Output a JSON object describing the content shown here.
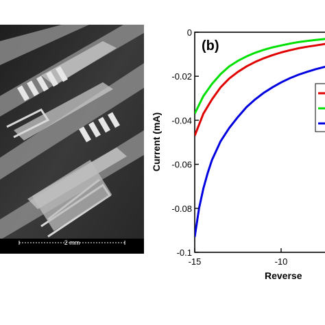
{
  "sem_image": {
    "scale_bar_label": "2 mm",
    "description_colors": {
      "background": "#2b2b2b",
      "device": "#bdbdbd"
    }
  },
  "chart_data": {
    "type": "line",
    "panel_label": "(b)",
    "xlabel": "Reverse",
    "ylabel": "Current (mA)",
    "xlim": [
      -15,
      -6
    ],
    "ylim": [
      -0.1,
      0
    ],
    "xticks": [
      -15,
      -10
    ],
    "yticks": [
      0,
      -0.02,
      -0.04,
      -0.06,
      -0.08,
      -0.1
    ],
    "ytick_labels": [
      "0",
      "-0.02",
      "-0.04",
      "-0.06",
      "-0.08",
      "-0.1"
    ],
    "xtick_labels": [
      "-15",
      "-10"
    ],
    "grid": false,
    "legend_placement": "right",
    "series": [
      {
        "color": "#00e000",
        "x": [
          -15,
          -14.5,
          -14,
          -13.5,
          -13,
          -12.5,
          -12,
          -11.5,
          -11,
          -10.5,
          -10,
          -9.5,
          -9,
          -8.5,
          -8,
          -7.5,
          -7
        ],
        "y": [
          -0.037,
          -0.029,
          -0.0235,
          -0.019,
          -0.0155,
          -0.013,
          -0.011,
          -0.0093,
          -0.008,
          -0.0069,
          -0.006,
          -0.0052,
          -0.0045,
          -0.004,
          -0.0035,
          -0.0031,
          -0.0027
        ]
      },
      {
        "color": "#e00000",
        "x": [
          -15,
          -14.5,
          -14,
          -13.5,
          -13,
          -12.5,
          -12,
          -11.5,
          -11,
          -10.5,
          -10,
          -9.5,
          -9,
          -8.5,
          -8,
          -7.5,
          -7
        ],
        "y": [
          -0.047,
          -0.037,
          -0.0305,
          -0.025,
          -0.021,
          -0.018,
          -0.0155,
          -0.0135,
          -0.0118,
          -0.0104,
          -0.0092,
          -0.0082,
          -0.0073,
          -0.0066,
          -0.006,
          -0.0054,
          -0.0049
        ]
      },
      {
        "color": "#0000e0",
        "x": [
          -15,
          -14.75,
          -14.5,
          -14.25,
          -14,
          -13.5,
          -13,
          -12.5,
          -12,
          -11.5,
          -11,
          -10.5,
          -10,
          -9.5,
          -9,
          -8.5,
          -8,
          -7.5,
          -7
        ],
        "y": [
          -0.093,
          -0.08,
          -0.071,
          -0.064,
          -0.058,
          -0.0495,
          -0.0435,
          -0.0385,
          -0.034,
          -0.0305,
          -0.0275,
          -0.025,
          -0.0228,
          -0.0209,
          -0.0193,
          -0.018,
          -0.0168,
          -0.0158,
          -0.015
        ]
      }
    ]
  }
}
